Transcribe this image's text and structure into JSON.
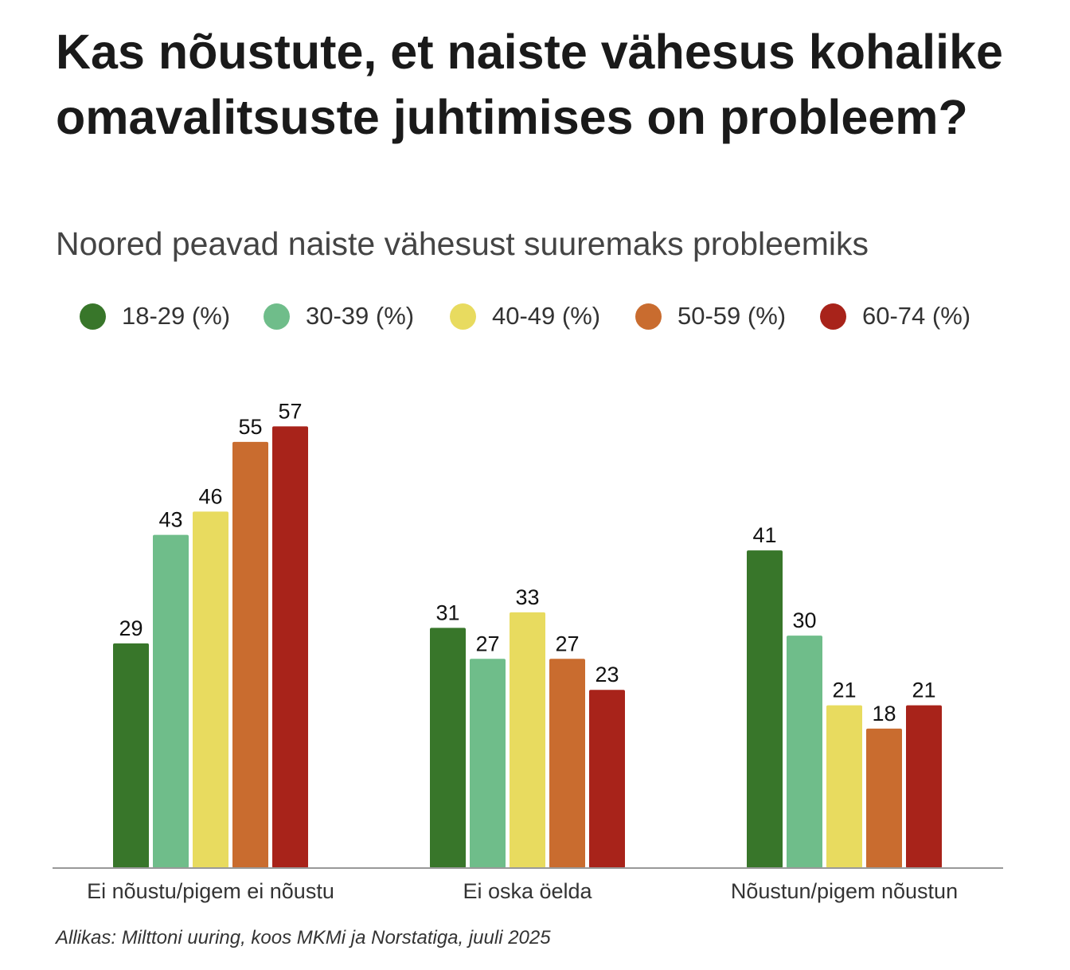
{
  "chart_data": {
    "type": "bar",
    "title": "Kas nõustute, et naiste vähesus kohalike omavalitsuste juhtimises on probleem?",
    "subtitle": "Noored peavad naiste vähesust suuremaks probleemiks",
    "categories": [
      "Ei nõustu/pigem ei nõustu",
      "Ei oska öelda",
      "Nõustun/pigem nõustun"
    ],
    "series": [
      {
        "name": "18-29 (%)",
        "color": "#38762a",
        "values": [
          29,
          31,
          41
        ]
      },
      {
        "name": "30-39 (%)",
        "color": "#6fbd8a",
        "values": [
          43,
          27,
          30
        ]
      },
      {
        "name": "40-49 (%)",
        "color": "#e8db5f",
        "values": [
          46,
          33,
          21
        ]
      },
      {
        "name": "50-59 (%)",
        "color": "#c96c2f",
        "values": [
          55,
          27,
          18
        ]
      },
      {
        "name": "60-74 (%)",
        "color": "#a8231a",
        "values": [
          57,
          23,
          21
        ]
      }
    ],
    "ylim": [
      0,
      60
    ],
    "grid": false,
    "legend_placement": "top",
    "data_labels": true,
    "source": "Allikas: Milttoni uuring, koos MKMi ja Norstatiga, juuli 2025"
  }
}
